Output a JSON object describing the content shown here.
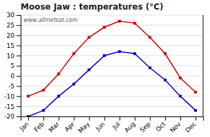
{
  "chart_data": {
    "type": "line",
    "title": "Moose Jaw : temperatures (°C)",
    "categories": [
      "Jan",
      "Feb",
      "Mar",
      "Apr",
      "May",
      "Jun",
      "Jul",
      "Aug",
      "Sep",
      "Oct",
      "Nov",
      "Dec"
    ],
    "series": [
      {
        "color": "#cc0000",
        "marker": "square",
        "values": [
          -10,
          -7,
          1,
          11,
          19,
          24,
          27,
          26,
          19,
          11,
          -1,
          -8
        ]
      },
      {
        "color": "#0000cc",
        "marker": "square",
        "values": [
          -20,
          -17,
          -10,
          -4,
          3,
          10,
          12,
          11,
          4,
          -2,
          -10,
          -17
        ]
      }
    ],
    "ylim": [
      -20,
      30
    ],
    "yticks": [
      -20,
      -15,
      -10,
      -5,
      0,
      5,
      10,
      15,
      20,
      25,
      30
    ],
    "grid": true,
    "annotations": [
      "www.allmetsat.com"
    ]
  }
}
